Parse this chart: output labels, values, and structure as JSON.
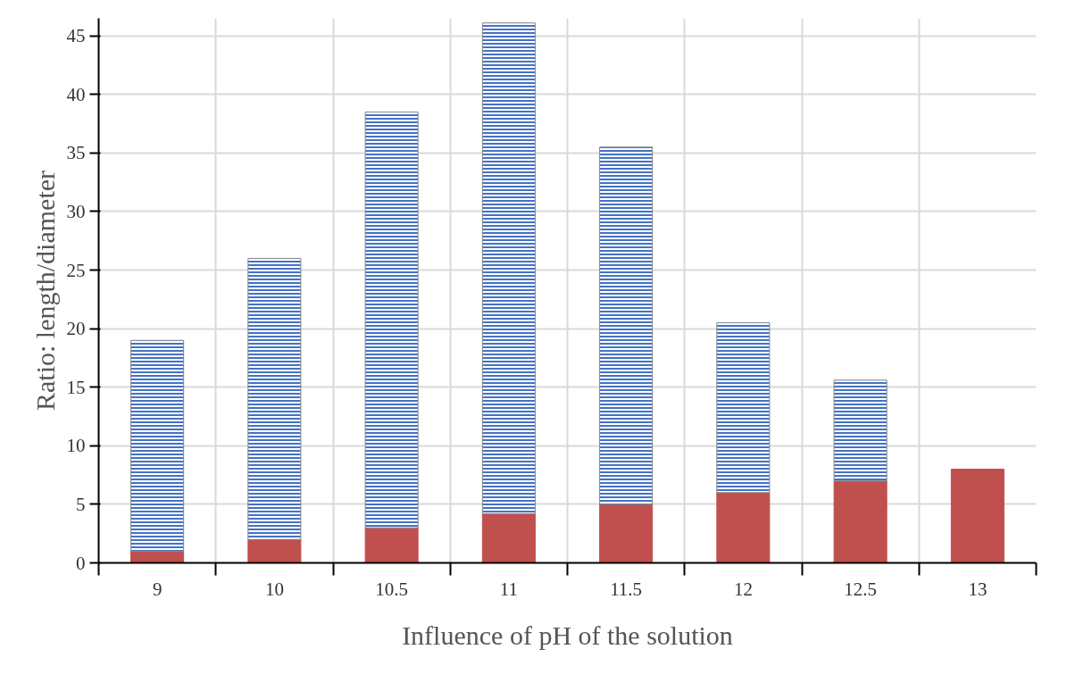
{
  "chart_data": {
    "type": "bar",
    "stacked": true,
    "xlabel": "Influence of pH of the solution",
    "ylabel": "Ratio: length/diameter",
    "categories": [
      "9",
      "10",
      "10.5",
      "11",
      "11.5",
      "12",
      "12.5",
      "13"
    ],
    "series": [
      {
        "color": "#c0504d",
        "values": [
          1,
          2,
          3,
          4.2,
          5,
          6,
          7,
          8
        ]
      },
      {
        "color": "#4472c4",
        "values": [
          18,
          24,
          35.5,
          41.9,
          30.5,
          14.5,
          8.6,
          null
        ]
      }
    ],
    "ylim": [
      0,
      46.5
    ],
    "yticks": [
      0,
      5,
      10,
      15,
      20,
      25,
      30,
      35,
      40,
      45
    ],
    "grid": true
  }
}
